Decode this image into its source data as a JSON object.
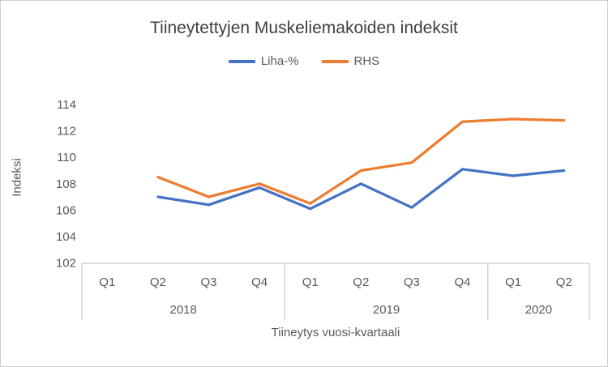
{
  "chart_data": {
    "type": "line",
    "title": "Tiineytettyjen Muskeliemakoiden indeksit",
    "xlabel": "Tiineytys vuosi-kvartaali",
    "ylabel": "Indeksi",
    "ylim": [
      102,
      114
    ],
    "yticks": [
      102,
      104,
      106,
      108,
      110,
      112,
      114
    ],
    "grid": false,
    "legend_position": "top",
    "categories": [
      "Q1",
      "Q2",
      "Q3",
      "Q4",
      "Q1",
      "Q2",
      "Q3",
      "Q4",
      "Q1",
      "Q2"
    ],
    "year_groups": [
      {
        "label": "2018",
        "span": 4
      },
      {
        "label": "2019",
        "span": 4
      },
      {
        "label": "2020",
        "span": 2
      }
    ],
    "series": [
      {
        "name": "Liha-%",
        "color": "#4472C4",
        "values": [
          null,
          107.0,
          106.4,
          107.7,
          106.1,
          108.0,
          106.2,
          109.1,
          108.6,
          109.0
        ]
      },
      {
        "name": "RHS",
        "color": "#ED7D31",
        "values": [
          null,
          108.5,
          107.0,
          108.0,
          106.5,
          109.0,
          109.6,
          112.7,
          112.9,
          112.8
        ]
      }
    ]
  }
}
